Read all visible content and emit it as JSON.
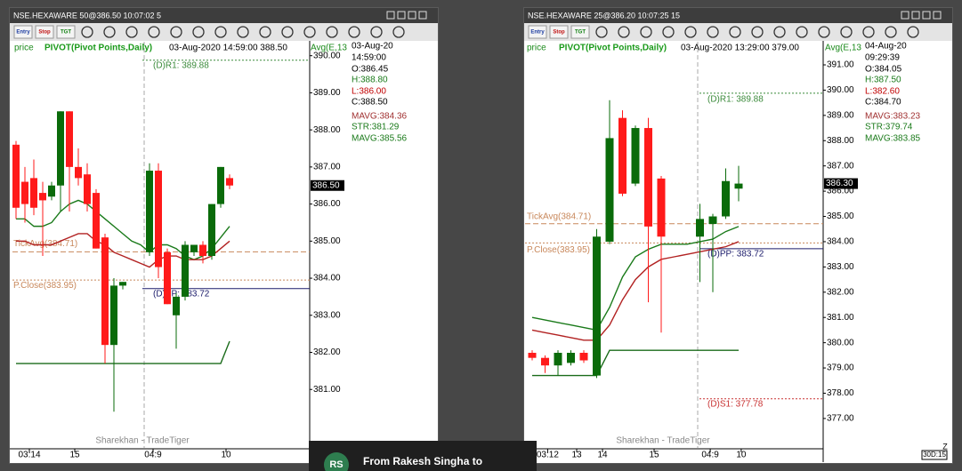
{
  "windows": [
    {
      "title": "NSE.HEXAWARE 50@386.50 10:07:02 5",
      "toolbar": [
        "Entry",
        "Stop",
        "TGT"
      ],
      "header": {
        "price": "price",
        "study": "PIVOT(Pivot Points,Daily)",
        "cursor": "03-Aug-2020  14:59:00  388.50",
        "avg": "Avg(E,13"
      },
      "info": [
        "03-Aug-20",
        "14:59:00",
        "O:386.45",
        "H:388.80",
        "L:386.00",
        "C:388.50",
        "MAVG:384.36",
        "STR:381.29",
        "MAVG:385.56"
      ],
      "ylim": [
        379.4,
        390.4
      ],
      "yticks": [
        {
          "value": 390,
          "label": "390.00"
        },
        {
          "value": 389,
          "label": "389.00"
        },
        {
          "value": 388,
          "label": "388.00"
        },
        {
          "value": 387,
          "label": "387.00"
        },
        {
          "value": 386,
          "label": "386.00"
        },
        {
          "value": 385,
          "label": "385.00"
        },
        {
          "value": 384,
          "label": "384.00"
        },
        {
          "value": 383,
          "label": "383.00"
        },
        {
          "value": 382,
          "label": "382.00"
        },
        {
          "value": 381,
          "label": "381.00"
        }
      ],
      "last": {
        "value": 386.5,
        "label": "386.50"
      },
      "xticks": [
        {
          "value": 1.5,
          "label": "03:14"
        },
        {
          "value": 6.6,
          "label": "15"
        },
        {
          "value": 15.4,
          "label": "04:9"
        },
        {
          "value": 23.6,
          "label": "10"
        }
      ],
      "levels": [
        {
          "value": 389.88,
          "label": "(D)R1: 389.88",
          "color": "#3a8a3a"
        },
        {
          "value": 384.71,
          "label": "TickAvg(384.71)",
          "color": "#c8875a"
        },
        {
          "value": 383.95,
          "label": "P.Close(383.95)",
          "color": "#c8875a"
        },
        {
          "value": 383.72,
          "label": "(D)PP: 383.72",
          "color": "#1a1a6a"
        }
      ],
      "candles": [
        [
          387.6,
          387.7,
          385.6,
          385.9
        ],
        [
          386.6,
          387.0,
          385.5,
          386.0
        ],
        [
          386.7,
          387.2,
          385.7,
          385.9
        ],
        [
          386.3,
          386.6,
          384.6,
          386.1
        ],
        [
          386.2,
          386.6,
          386.1,
          386.5
        ],
        [
          386.5,
          388.5,
          385.8,
          388.5
        ],
        [
          388.5,
          388.5,
          385.8,
          387.0
        ],
        [
          387.0,
          387.5,
          386.5,
          386.7
        ],
        [
          386.8,
          387.1,
          385.8,
          386.0
        ],
        [
          386.3,
          386.4,
          384.8,
          384.8
        ],
        [
          385.1,
          385.2,
          381.7,
          382.2
        ],
        [
          382.2,
          384.0,
          380.4,
          383.8
        ],
        [
          383.8,
          383.9,
          383.7,
          383.9
        ],
        null,
        null,
        [
          384.7,
          387.1,
          384.6,
          386.9
        ],
        [
          386.9,
          387.1,
          384.0,
          384.3
        ],
        [
          384.7,
          384.8,
          383.3,
          383.3
        ],
        [
          383.0,
          383.6,
          382.1,
          383.5
        ],
        [
          383.5,
          385.0,
          383.4,
          384.9
        ],
        [
          384.7,
          384.9,
          384.6,
          384.9
        ],
        [
          384.9,
          385.0,
          384.4,
          384.6
        ],
        [
          384.6,
          386.0,
          384.5,
          386.0
        ],
        [
          386.0,
          387.0,
          385.9,
          387.0
        ],
        [
          386.7,
          386.8,
          386.4,
          386.5
        ]
      ],
      "lines": [
        {
          "color": "#1a7a1a",
          "values": [
            385.6,
            385.6,
            385.4,
            385.4,
            385.5,
            385.8,
            386.0,
            386.1,
            386.0,
            385.8,
            385.6,
            385.4,
            385.2,
            385.0,
            384.9,
            384.7,
            384.9,
            384.9,
            384.8,
            384.6,
            384.5,
            384.6,
            384.8,
            385.1,
            385.4
          ]
        },
        {
          "color": "#b22222",
          "values": [
            385.0,
            385.0,
            384.9,
            384.9,
            384.9,
            385.0,
            385.1,
            385.2,
            385.2,
            385.0,
            384.9,
            384.7,
            384.6,
            384.5,
            384.4,
            384.3,
            384.5,
            384.6,
            384.6,
            384.5,
            384.5,
            384.5,
            384.6,
            384.8,
            385.0
          ]
        },
        {
          "color": "#1a6b1a",
          "values": [
            381.7,
            381.7,
            381.7,
            381.7,
            381.7,
            381.7,
            381.7,
            381.7,
            381.7,
            381.7,
            381.7,
            381.7,
            381.7,
            381.7,
            381.7,
            381.7,
            381.7,
            381.7,
            381.7,
            381.7,
            381.7,
            381.7,
            381.7,
            381.7,
            382.3
          ]
        }
      ],
      "watermark": "Sharekhan - TradeTiger"
    },
    {
      "title": "NSE.HEXAWARE 25@386.20 10:07:25 15",
      "toolbar": [
        "Entry",
        "Stop",
        "TGT"
      ],
      "header": {
        "price": "price",
        "study": "PIVOT(Pivot Points,Daily)",
        "cursor": "03-Aug-2020  13:29:00  379.00",
        "avg": "Avg(E,13"
      },
      "info": [
        "04-Aug-20",
        "09:29:39",
        "O:384.05",
        "H:387.50",
        "L:382.60",
        "C:384.70",
        "MAVG:383.23",
        "STR:379.74",
        "MAVG:383.85"
      ],
      "ylim": [
        375.8,
        391.95
      ],
      "yticks": [
        {
          "value": 391,
          "label": "391.00"
        },
        {
          "value": 390,
          "label": "390.00"
        },
        {
          "value": 389,
          "label": "389.00"
        },
        {
          "value": 388,
          "label": "388.00"
        },
        {
          "value": 387,
          "label": "387.00"
        },
        {
          "value": 386,
          "label": "386.00"
        },
        {
          "value": 385,
          "label": "385.00"
        },
        {
          "value": 384,
          "label": "384.00"
        },
        {
          "value": 383,
          "label": "383.00"
        },
        {
          "value": 382,
          "label": "382.00"
        },
        {
          "value": 381,
          "label": "381.00"
        },
        {
          "value": 380,
          "label": "380.00"
        },
        {
          "value": 379,
          "label": "379.00"
        },
        {
          "value": 378,
          "label": "378.00"
        },
        {
          "value": 377,
          "label": "377.00"
        }
      ],
      "last": {
        "value": 386.3,
        "label": "386.30"
      },
      "xticks": [
        {
          "value": 1.2,
          "label": "03:12"
        },
        {
          "value": 3.45,
          "label": "13"
        },
        {
          "value": 5.45,
          "label": "14"
        },
        {
          "value": 9.45,
          "label": "15"
        },
        {
          "value": 13.8,
          "label": "04:9"
        },
        {
          "value": 16.2,
          "label": "10"
        }
      ],
      "levels": [
        {
          "value": 389.88,
          "label": "(D)R1: 389.88",
          "color": "#3a8a3a"
        },
        {
          "value": 384.71,
          "label": "TickAvg(384.71)",
          "color": "#c8875a"
        },
        {
          "value": 383.95,
          "label": "P.Close(383.95)",
          "color": "#c8875a"
        },
        {
          "value": 383.72,
          "label": "(D)PP: 383.72",
          "color": "#1a1a6a"
        },
        {
          "value": 377.78,
          "label": "(D)S1: 377.78",
          "color": "#c83232"
        }
      ],
      "candles": [
        [
          379.6,
          379.7,
          379.3,
          379.4
        ],
        [
          379.4,
          379.5,
          378.8,
          379.1
        ],
        [
          379.1,
          379.7,
          378.7,
          379.6
        ],
        [
          379.2,
          379.7,
          379.1,
          379.6
        ],
        [
          379.6,
          379.7,
          379.2,
          379.3
        ],
        [
          378.7,
          384.5,
          378.6,
          384.2
        ],
        [
          384.0,
          389.6,
          383.9,
          388.1
        ],
        [
          388.9,
          389.2,
          385.8,
          385.9
        ],
        [
          386.3,
          388.6,
          386.2,
          388.5
        ],
        [
          388.5,
          388.9,
          381.6,
          384.6
        ],
        [
          386.5,
          386.6,
          380.4,
          384.2
        ],
        null,
        null,
        [
          384.2,
          385.5,
          382.4,
          384.9
        ],
        [
          384.7,
          385.1,
          382.0,
          385.0
        ],
        [
          385.0,
          386.9,
          384.9,
          386.4
        ],
        [
          386.1,
          387.0,
          385.6,
          386.3
        ]
      ],
      "lines": [
        {
          "color": "#1a7a1a",
          "values": [
            381.0,
            380.9,
            380.8,
            380.7,
            380.6,
            380.5,
            381.4,
            382.6,
            383.4,
            383.7,
            383.9,
            383.9,
            383.9,
            384.0,
            384.1,
            384.4,
            384.6
          ]
        },
        {
          "color": "#b22222",
          "values": [
            380.5,
            380.4,
            380.3,
            380.2,
            380.1,
            380.1,
            380.7,
            381.7,
            382.5,
            383.0,
            383.3,
            383.4,
            383.5,
            383.6,
            383.7,
            383.8,
            384.0
          ]
        },
        {
          "color": "#1a6b1a",
          "values": [
            378.7,
            378.7,
            378.7,
            378.7,
            378.7,
            378.7,
            379.7,
            379.7,
            379.7,
            379.7,
            379.7,
            379.7,
            379.7,
            379.7,
            379.7,
            379.7,
            379.7
          ]
        }
      ],
      "watermark": "Sharekhan - TradeTiger",
      "corner": {
        "zoom": "Z",
        "period": "30D:15"
      }
    }
  ],
  "notification": {
    "initials": "RS",
    "text": "From Rakesh Singha to"
  }
}
